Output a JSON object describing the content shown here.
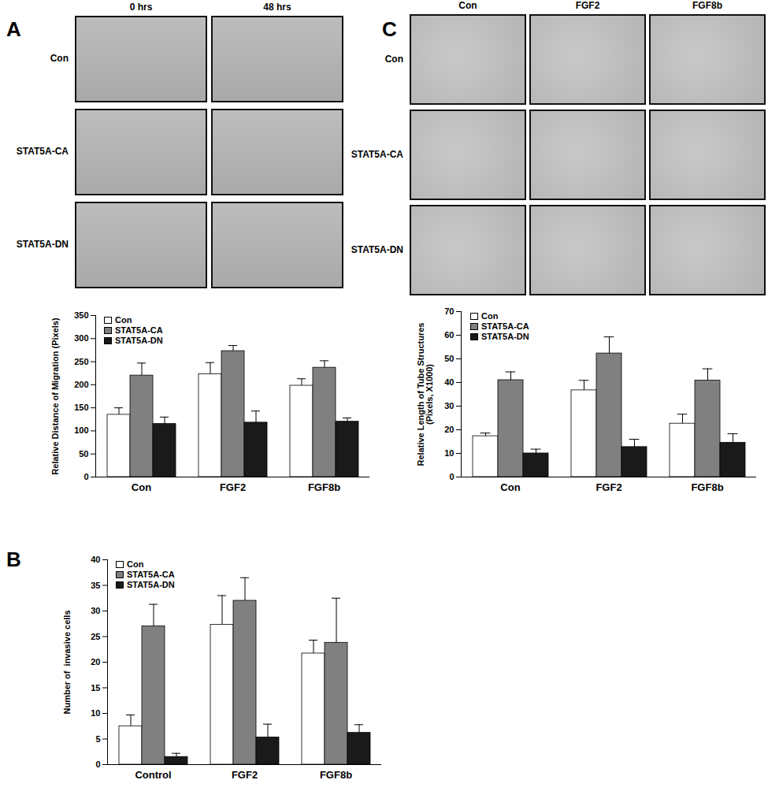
{
  "figure": {
    "panel_labels": [
      "A",
      "B",
      "C"
    ],
    "image_grids": [
      {
        "columns": [
          "0 hrs",
          "48 hrs"
        ],
        "rows": [
          "Con",
          "STAT5A-CA",
          "STAT5A-DN"
        ]
      },
      {
        "columns": [
          "Con",
          "FGF2",
          "FGF8b"
        ],
        "rows": [
          "Con",
          "STAT5A-CA",
          "STAT5A-DN"
        ]
      }
    ]
  },
  "chart_data": [
    {
      "type": "bar",
      "y_label": "Relative Distance of Migration (Pixels)",
      "categories": [
        "Con",
        "FGF2",
        "FGF8b"
      ],
      "series": [
        {
          "name": "Con",
          "color": "#ffffff",
          "values": [
            135,
            223,
            198
          ],
          "errors": [
            15,
            25,
            15
          ]
        },
        {
          "name": "STAT5A-CA",
          "color": "#808080",
          "values": [
            220,
            273,
            237
          ],
          "errors": [
            27,
            12,
            15
          ]
        },
        {
          "name": "STAT5A-DN",
          "color": "#1a1a1a",
          "values": [
            115,
            118,
            120
          ],
          "errors": [
            15,
            25,
            8
          ]
        }
      ],
      "ylim": [
        0,
        350
      ],
      "yticks": [
        0,
        50,
        100,
        150,
        200,
        250,
        300,
        350
      ],
      "legend": "upper left"
    },
    {
      "type": "bar",
      "y_label": "Number of  invasive cells",
      "categories": [
        "Control",
        "FGF2",
        "FGF8b"
      ],
      "series": [
        {
          "name": "Con",
          "color": "#ffffff",
          "values": [
            7.5,
            27.3,
            21.7
          ],
          "errors": [
            2.2,
            5.7,
            2.6
          ]
        },
        {
          "name": "STAT5A-CA",
          "color": "#808080",
          "values": [
            27,
            32,
            23.8
          ],
          "errors": [
            4.3,
            4.5,
            8.7
          ]
        },
        {
          "name": "STAT5A-DN",
          "color": "#1a1a1a",
          "values": [
            1.5,
            5.3,
            6.2
          ],
          "errors": [
            0.7,
            2.6,
            1.6
          ]
        }
      ],
      "ylim": [
        0,
        40
      ],
      "yticks": [
        0,
        5,
        10,
        15,
        20,
        25,
        30,
        35,
        40
      ],
      "legend": "upper left"
    },
    {
      "type": "bar",
      "y_label": "Relative Length of Tube Structures\n(Pixels, X1000)",
      "categories": [
        "Con",
        "FGF2",
        "FGF8b"
      ],
      "series": [
        {
          "name": "Con",
          "color": "#ffffff",
          "values": [
            17.3,
            36.7,
            22.6
          ],
          "errors": [
            1.3,
            4.2,
            4
          ]
        },
        {
          "name": "STAT5A-CA",
          "color": "#808080",
          "values": [
            41,
            52.3,
            40.8
          ],
          "errors": [
            3.5,
            7,
            5
          ]
        },
        {
          "name": "STAT5A-DN",
          "color": "#1a1a1a",
          "values": [
            10,
            12.7,
            14.5
          ],
          "errors": [
            1.8,
            3.3,
            3.8
          ]
        }
      ],
      "ylim": [
        0,
        70
      ],
      "yticks": [
        0,
        10,
        20,
        30,
        40,
        50,
        60,
        70
      ],
      "legend": "upper left"
    }
  ]
}
